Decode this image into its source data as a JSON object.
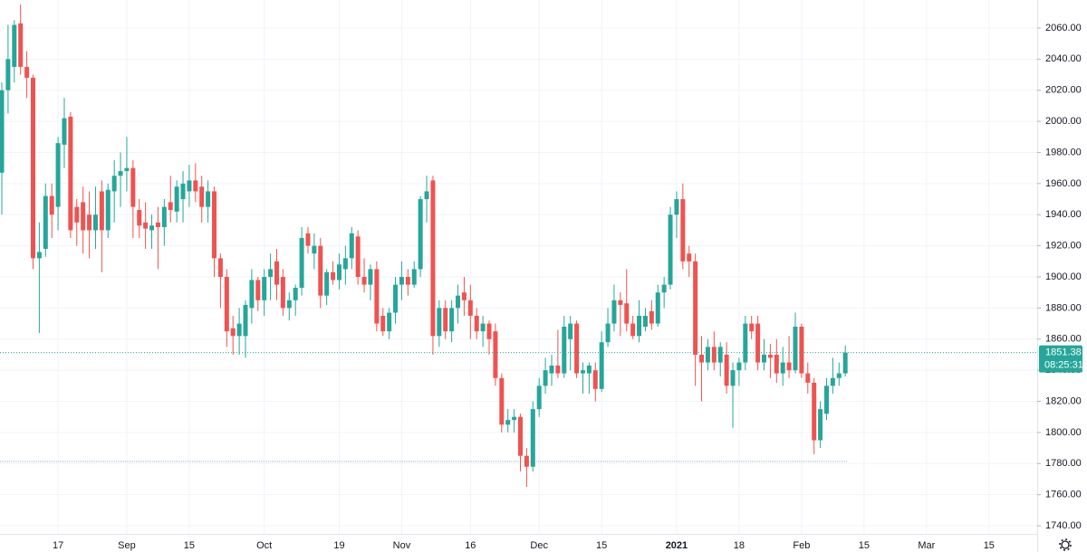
{
  "chart_data": {
    "type": "candlestick",
    "categories": [
      null,
      null,
      null,
      null,
      null,
      null,
      null,
      null,
      null,
      "17",
      null,
      null,
      null,
      null,
      null,
      null,
      null,
      null,
      null,
      null,
      "Sep",
      null,
      null,
      null,
      null,
      null,
      null,
      null,
      null,
      null,
      "15",
      null,
      null,
      null,
      null,
      null,
      null,
      null,
      null,
      null,
      null,
      null,
      "Oct",
      null,
      null,
      null,
      null,
      null,
      null,
      null,
      null,
      null,
      null,
      null,
      "19",
      null,
      null,
      null,
      null,
      null,
      null,
      null,
      null,
      null,
      "Nov",
      null,
      null,
      null,
      null,
      null,
      null,
      null,
      null,
      null,
      null,
      "16",
      null,
      null,
      null,
      null,
      null,
      null,
      null,
      null,
      null,
      null,
      "Dec",
      null,
      null,
      null,
      null,
      null,
      null,
      null,
      null,
      null,
      "15",
      null,
      null,
      null,
      null,
      null,
      null,
      null,
      null,
      null,
      null,
      null,
      "2021",
      null,
      null,
      null,
      null,
      null,
      null,
      null,
      null,
      null,
      "18",
      null,
      null,
      null,
      null,
      null,
      null,
      null,
      null,
      null,
      "Feb",
      null,
      null,
      null,
      null,
      null,
      null,
      null,
      null,
      null,
      "15",
      null,
      null,
      null,
      null,
      null,
      null,
      null,
      null,
      null,
      "Mar",
      null,
      null,
      null,
      null,
      null,
      null,
      null,
      null,
      null,
      "15",
      null,
      null,
      null,
      null,
      null,
      null,
      null
    ],
    "open": [
      1967,
      2020,
      2035,
      2063,
      2035,
      2028,
      1912,
      1918,
      1952,
      1945,
      1985,
      2003,
      1945,
      1948,
      1940,
      1930,
      1955,
      1930,
      1955,
      1965,
      1968,
      1970,
      1943,
      1935,
      1930,
      1935,
      1932,
      1948,
      1942,
      1950,
      1955,
      1962,
      1958,
      1945,
      1955,
      1912,
      1900,
      1867,
      1862,
      1862,
      1880,
      1898,
      1885,
      1900,
      1910,
      1900,
      1880,
      1885,
      1893,
      1928,
      1915,
      1920,
      1888,
      1903,
      1898,
      1905,
      1912,
      1926,
      1900,
      1895,
      1905,
      1875,
      1865,
      1877,
      1895,
      1900,
      1895,
      1905,
      1950,
      1962,
      1862,
      1880,
      1865,
      1880,
      1890,
      1885,
      1875,
      1865,
      1870,
      1865,
      1835,
      1805,
      1808,
      1810,
      1785,
      1778,
      1815,
      1830,
      1838,
      1843,
      1838,
      1860,
      1870,
      1838,
      1838,
      1840,
      1828,
      1858,
      1870,
      1885,
      1883,
      1870,
      1862,
      1868,
      1878,
      1870,
      1890,
      1895,
      1940,
      1950,
      1915,
      1910,
      1850,
      1845,
      1855,
      1845,
      1850,
      1830,
      1840,
      1845,
      1870,
      1870,
      1845,
      1850,
      1850,
      1838,
      1845,
      1840,
      1868,
      1838,
      1832,
      1795,
      1812,
      1830,
      1835,
      1838,
      null,
      null,
      null,
      null,
      null,
      null,
      null,
      null,
      null,
      null,
      null,
      null,
      null,
      null,
      null,
      null,
      null,
      null,
      null,
      null,
      null,
      null,
      null,
      null,
      null,
      null,
      null,
      null,
      null,
      null
    ],
    "high": [
      2025,
      2062,
      2065,
      2075,
      2045,
      2030,
      1935,
      1960,
      1960,
      1990,
      2015,
      2006,
      1950,
      1958,
      1955,
      1958,
      1962,
      1960,
      1975,
      1980,
      1990,
      1975,
      1950,
      1948,
      1940,
      1945,
      1950,
      1965,
      1962,
      1968,
      1972,
      1973,
      1965,
      1962,
      1958,
      1915,
      1905,
      1875,
      1880,
      1885,
      1905,
      1900,
      1905,
      1915,
      1918,
      1905,
      1890,
      1895,
      1932,
      1932,
      1928,
      1925,
      1905,
      1910,
      1915,
      1920,
      1932,
      1930,
      1912,
      1908,
      1910,
      1880,
      1880,
      1900,
      1910,
      1905,
      1910,
      1952,
      1965,
      1965,
      1885,
      1885,
      1885,
      1895,
      1900,
      1895,
      1880,
      1875,
      1872,
      1870,
      1838,
      1815,
      1815,
      1812,
      1790,
      1820,
      1835,
      1848,
      1850,
      1866,
      1875,
      1875,
      1872,
      1845,
      1845,
      1845,
      1865,
      1880,
      1895,
      1890,
      1905,
      1875,
      1885,
      1880,
      1885,
      1895,
      1900,
      1945,
      1955,
      1960,
      1920,
      1915,
      1862,
      1860,
      1865,
      1858,
      1858,
      1845,
      1848,
      1875,
      1875,
      1875,
      1860,
      1857,
      1860,
      1855,
      1862,
      1877,
      1870,
      1845,
      1835,
      1820,
      1835,
      1848,
      1845,
      1856,
      null,
      null,
      null,
      null,
      null,
      null,
      null,
      null,
      null,
      null,
      null,
      null,
      null,
      null,
      null,
      null,
      null,
      null,
      null,
      null,
      null,
      null,
      null,
      null,
      null,
      null,
      null,
      null,
      null,
      null
    ],
    "low": [
      1940,
      2005,
      2025,
      2030,
      2015,
      1905,
      1864,
      1913,
      1925,
      1930,
      1970,
      1925,
      1920,
      1915,
      1912,
      1918,
      1903,
      1925,
      1935,
      1945,
      1955,
      1925,
      1925,
      1918,
      1918,
      1905,
      1920,
      1935,
      1935,
      1935,
      1945,
      1948,
      1935,
      1935,
      1900,
      1880,
      1855,
      1850,
      1850,
      1848,
      1870,
      1878,
      1875,
      1885,
      1885,
      1875,
      1872,
      1875,
      1888,
      1915,
      1905,
      1880,
      1882,
      1895,
      1892,
      1895,
      1905,
      1895,
      1890,
      1885,
      1865,
      1862,
      1860,
      1870,
      1885,
      1888,
      1893,
      1900,
      1935,
      1850,
      1855,
      1860,
      1858,
      1870,
      1875,
      1860,
      1860,
      1855,
      1850,
      1830,
      1800,
      1800,
      1800,
      1775,
      1765,
      1775,
      1810,
      1825,
      1830,
      1835,
      1835,
      1840,
      1835,
      1825,
      1825,
      1820,
      1826,
      1855,
      1865,
      1862,
      1865,
      1860,
      1858,
      1865,
      1866,
      1868,
      1880,
      1892,
      1925,
      1905,
      1900,
      1830,
      1820,
      1840,
      1840,
      1836,
      1825,
      1803,
      1830,
      1840,
      1860,
      1840,
      1840,
      1835,
      1832,
      1830,
      1835,
      1838,
      1835,
      1825,
      1786,
      1790,
      1808,
      1825,
      1830,
      1836,
      null,
      null,
      null,
      null,
      null,
      null,
      null,
      null,
      null,
      null,
      null,
      null,
      null,
      null,
      null,
      null,
      null,
      null,
      null,
      null,
      null,
      null,
      null,
      null,
      null,
      null,
      null,
      null,
      null,
      null
    ],
    "close": [
      2020,
      2040,
      2062,
      2035,
      2028,
      1912,
      1916,
      1952,
      1940,
      1986,
      2002,
      1930,
      1935,
      1930,
      1930,
      1940,
      1930,
      1956,
      1965,
      1968,
      1970,
      1945,
      1933,
      1931,
      1933,
      1932,
      1945,
      1943,
      1958,
      1960,
      1962,
      1955,
      1945,
      1955,
      1912,
      1900,
      1865,
      1862,
      1870,
      1882,
      1898,
      1885,
      1900,
      1905,
      1895,
      1880,
      1885,
      1893,
      1925,
      1920,
      1920,
      1888,
      1903,
      1898,
      1908,
      1912,
      1928,
      1900,
      1895,
      1905,
      1870,
      1865,
      1877,
      1895,
      1900,
      1895,
      1905,
      1950,
      1955,
      1862,
      1880,
      1865,
      1880,
      1888,
      1885,
      1875,
      1865,
      1870,
      1860,
      1835,
      1805,
      1808,
      1810,
      1785,
      1778,
      1815,
      1830,
      1840,
      1843,
      1838,
      1868,
      1870,
      1838,
      1840,
      1843,
      1828,
      1858,
      1870,
      1885,
      1882,
      1870,
      1862,
      1875,
      1875,
      1870,
      1890,
      1895,
      1940,
      1950,
      1910,
      1910,
      1850,
      1845,
      1855,
      1845,
      1855,
      1830,
      1840,
      1845,
      1870,
      1865,
      1845,
      1850,
      1848,
      1838,
      1845,
      1840,
      1868,
      1838,
      1832,
      1795,
      1815,
      1830,
      1835,
      1838,
      1851.38,
      null,
      null,
      null,
      null,
      null,
      null,
      null,
      null,
      null,
      null,
      null,
      null,
      null,
      null,
      null,
      null,
      null,
      null,
      null,
      null,
      null,
      null,
      null,
      null,
      null,
      null,
      null,
      null,
      null,
      null
    ],
    "up_color": "#26a69a",
    "down_color": "#ef5350",
    "last_price": 1851.38,
    "countdown": "08:25:31",
    "level": 1781.3,
    "ylim": [
      1734.8,
      2078
    ],
    "yticks": [
      {
        "value": 1740,
        "label": "1740.00"
      },
      {
        "value": 1760,
        "label": "1760.00"
      },
      {
        "value": 1780,
        "label": "1780.00"
      },
      {
        "value": 1800,
        "label": "1800.00"
      },
      {
        "value": 1820,
        "label": "1820.00"
      },
      {
        "value": 1840,
        "label": "1840.00"
      },
      {
        "value": 1860,
        "label": "1860.00"
      },
      {
        "value": 1880,
        "label": "1880.00"
      },
      {
        "value": 1900,
        "label": "1900.00"
      },
      {
        "value": 1920,
        "label": "1920.00"
      },
      {
        "value": 1940,
        "label": "1940.00"
      },
      {
        "value": 1960,
        "label": "1960.00"
      },
      {
        "value": 1980,
        "label": "1980.00"
      },
      {
        "value": 2000,
        "label": "2000.00"
      },
      {
        "value": 2020,
        "label": "2020.00"
      },
      {
        "value": 2040,
        "label": "2040.00"
      },
      {
        "value": 2060,
        "label": "2060.00"
      }
    ],
    "grid": true
  }
}
